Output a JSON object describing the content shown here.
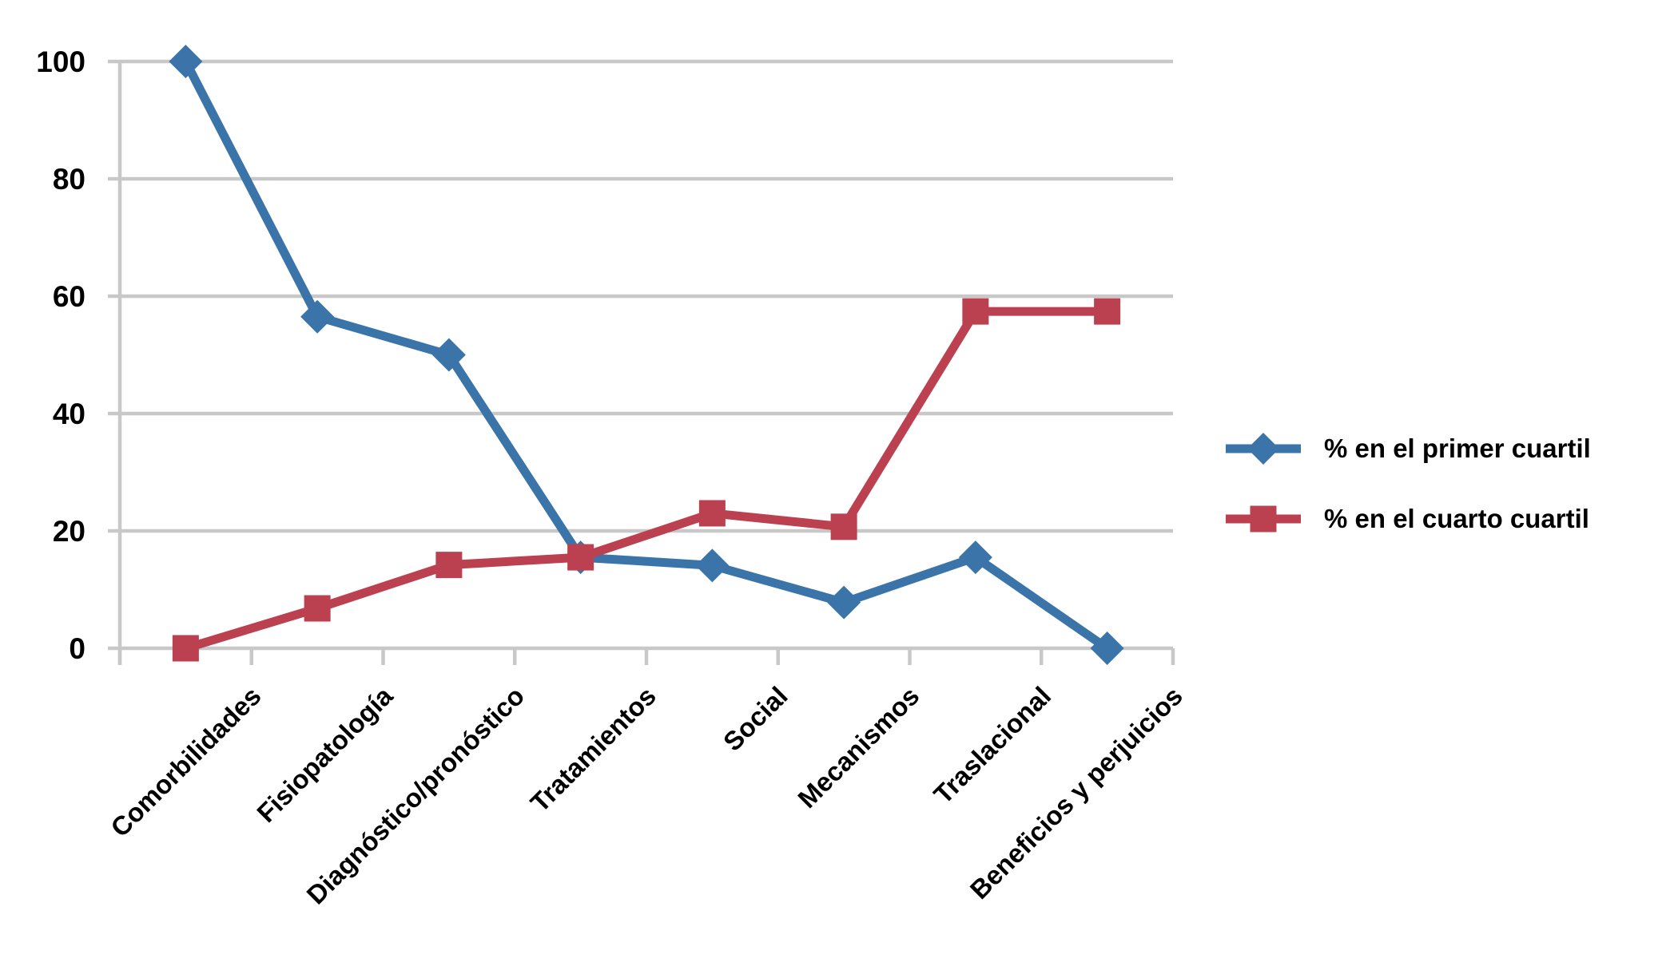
{
  "chart_data": {
    "type": "line",
    "title": "",
    "xlabel": "",
    "ylabel": "",
    "categories": [
      "Comorbilidades",
      "Fisiopatología",
      "Diagnóstico/pronóstico",
      "Tratamientos",
      "Social",
      "Mecanismos",
      "Traslacional",
      "Beneficios y perjuicios"
    ],
    "series": [
      {
        "name": "% en el primer cuartil",
        "marker": "diamond",
        "color": "#3A74A8",
        "values": [
          100,
          56.5,
          50,
          15.5,
          14.1,
          7.8,
          15.5,
          0
        ]
      },
      {
        "name": "% en el cuarto cuartil",
        "marker": "square",
        "color": "#BC4150",
        "values": [
          0,
          6.8,
          14.2,
          15.5,
          23,
          20.7,
          57.4,
          57.4
        ]
      }
    ],
    "ylim": [
      0,
      100
    ],
    "yticks": [
      0,
      20,
      40,
      60,
      80,
      100
    ],
    "grid": "horizontal",
    "legend_position": "right"
  },
  "colors": {
    "grid": "#C8C8C8",
    "axis": "#C8C8C8",
    "text": "#000000",
    "background": "#FFFFFF"
  }
}
